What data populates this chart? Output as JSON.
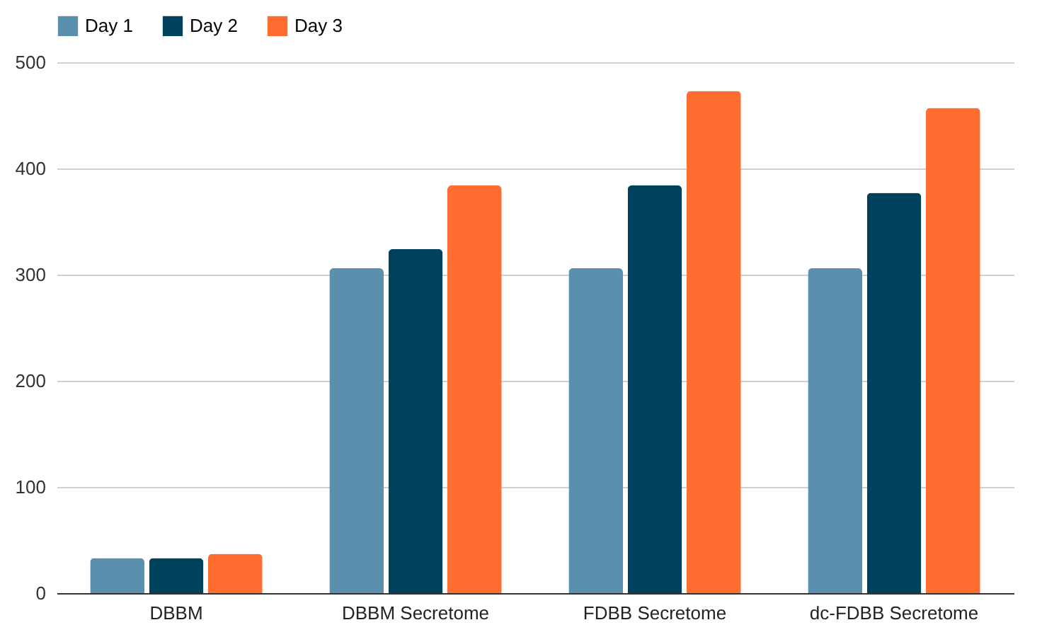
{
  "chart_data": {
    "type": "bar",
    "categories": [
      "DBBM",
      "DBBM Secretome",
      "FDBB Secretome",
      "dc-FDBB Secretome"
    ],
    "series": [
      {
        "name": "Day 1",
        "color": "#5b8fae",
        "values": [
          33,
          306,
          306,
          306
        ]
      },
      {
        "name": "Day 2",
        "color": "#00425e",
        "values": [
          33,
          324,
          384,
          377
        ]
      },
      {
        "name": "Day 3",
        "color": "#ff6d31",
        "values": [
          37,
          384,
          473,
          457
        ]
      }
    ],
    "ylim": [
      0,
      500
    ],
    "yticks": [
      0,
      100,
      200,
      300,
      400,
      500
    ],
    "grid": "y",
    "legend": "top"
  }
}
